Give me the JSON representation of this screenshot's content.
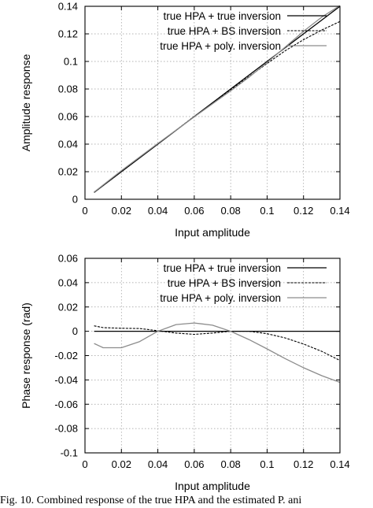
{
  "chart_data": [
    {
      "type": "line",
      "xlabel": "Input amplitude",
      "ylabel": "Amplitude response",
      "xlim": [
        0,
        0.14
      ],
      "ylim": [
        0,
        0.14
      ],
      "x_ticks": [
        "0",
        "0.02",
        "0.04",
        "0.06",
        "0.08",
        "0.1",
        "0.12",
        "0.14"
      ],
      "y_ticks": [
        "0",
        "0.02",
        "0.04",
        "0.06",
        "0.08",
        "0.1",
        "0.12",
        "0.14"
      ],
      "grid": true,
      "legend_position": "top-left",
      "series": [
        {
          "name": "true HPA + true inversion",
          "style": "solid",
          "color": "#000000",
          "x": [
            0.005,
            0.02,
            0.04,
            0.06,
            0.08,
            0.1,
            0.12,
            0.14
          ],
          "y": [
            0.005,
            0.02,
            0.04,
            0.06,
            0.08,
            0.1,
            0.12,
            0.14
          ]
        },
        {
          "name": "true HPA + BS inversion",
          "style": "dashed",
          "color": "#000000",
          "x": [
            0.005,
            0.02,
            0.04,
            0.06,
            0.08,
            0.09,
            0.1,
            0.11,
            0.12,
            0.13,
            0.14
          ],
          "y": [
            0.005,
            0.02,
            0.0402,
            0.0601,
            0.0795,
            0.089,
            0.0985,
            0.1078,
            0.1158,
            0.1228,
            0.129
          ]
        },
        {
          "name": "true HPA + poly. inversion",
          "style": "solid",
          "color": "#8c8c8c",
          "x": [
            0.005,
            0.02,
            0.04,
            0.06,
            0.08,
            0.09,
            0.1,
            0.11,
            0.12,
            0.13,
            0.14
          ],
          "y": [
            0.0052,
            0.0208,
            0.0405,
            0.0598,
            0.0787,
            0.0885,
            0.0992,
            0.1105,
            0.1218,
            0.1322,
            0.1405
          ]
        }
      ]
    },
    {
      "type": "line",
      "xlabel": "Input amplitude",
      "ylabel": "Phase response (rad)",
      "xlim": [
        0,
        0.14
      ],
      "ylim": [
        -0.1,
        0.06
      ],
      "x_ticks": [
        "0",
        "0.02",
        "0.04",
        "0.06",
        "0.08",
        "0.1",
        "0.12",
        "0.14"
      ],
      "y_ticks": [
        "0.06",
        "0.04",
        "0.02",
        "0",
        "-0.02",
        "-0.04",
        "-0.06",
        "-0.08",
        "-0.1"
      ],
      "grid": true,
      "legend_position": "top-right",
      "series": [
        {
          "name": "true HPA + true inversion",
          "style": "solid",
          "color": "#000000",
          "x": [
            0.005,
            0.14
          ],
          "y": [
            0,
            0
          ]
        },
        {
          "name": "true HPA + BS inversion",
          "style": "dashed",
          "color": "#000000",
          "x": [
            0.005,
            0.01,
            0.02,
            0.03,
            0.04,
            0.05,
            0.06,
            0.07,
            0.08,
            0.09,
            0.1,
            0.11,
            0.12,
            0.13,
            0.14
          ],
          "y": [
            0.0045,
            0.003,
            0.0025,
            0.0023,
            0.0005,
            -0.0015,
            -0.0025,
            -0.0015,
            0.0,
            0.0,
            -0.002,
            -0.0055,
            -0.0105,
            -0.0165,
            -0.024
          ]
        },
        {
          "name": "true HPA + poly. inversion",
          "style": "solid",
          "color": "#8c8c8c",
          "x": [
            0.005,
            0.01,
            0.02,
            0.03,
            0.04,
            0.05,
            0.06,
            0.07,
            0.08,
            0.09,
            0.1,
            0.11,
            0.12,
            0.13,
            0.14
          ],
          "y": [
            -0.01,
            -0.0135,
            -0.0135,
            -0.0085,
            0.0,
            0.0055,
            0.0068,
            0.005,
            0.0,
            -0.0068,
            -0.0145,
            -0.0225,
            -0.03,
            -0.0365,
            -0.042
          ]
        }
      ]
    }
  ],
  "caption": "Fig. 10.   Combined response of the true HPA and the estimated P. ani"
}
